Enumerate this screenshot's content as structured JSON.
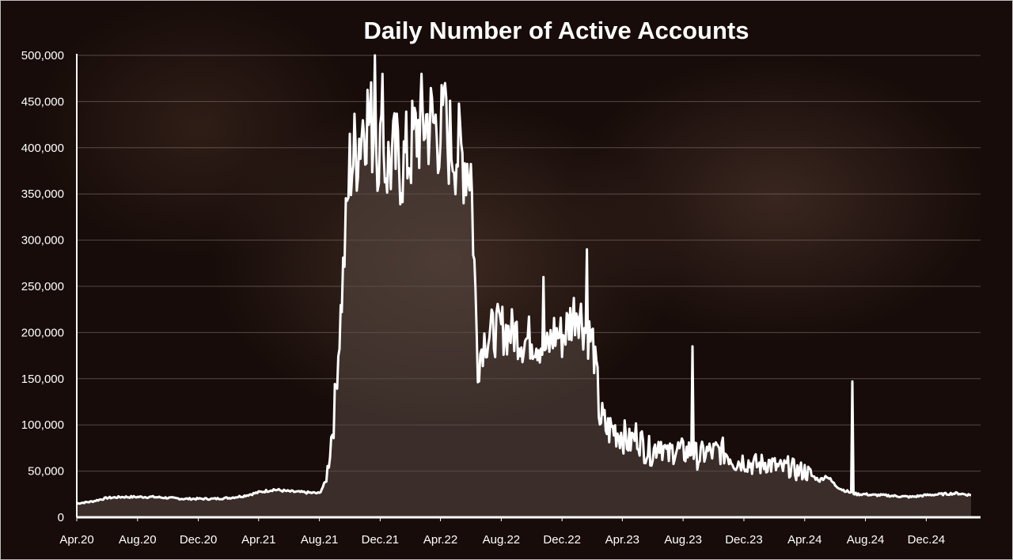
{
  "chart_data": {
    "type": "area",
    "title": "Daily Number of Active Accounts",
    "xlabel": "",
    "ylabel": "",
    "ylim": [
      0,
      500000
    ],
    "grid": true,
    "colors": {
      "line": "#ffffff",
      "fill": "#5a4a46",
      "background": "#170c09"
    },
    "y_ticks": [
      0,
      50000,
      100000,
      150000,
      200000,
      250000,
      300000,
      350000,
      400000,
      450000,
      500000
    ],
    "y_tick_labels": [
      "0",
      "50,000",
      "100,000",
      "150,000",
      "200,000",
      "250,000",
      "300,000",
      "350,000",
      "400,000",
      "450,000",
      "500,000"
    ],
    "x_tick_labels": [
      "Apr.20",
      "Aug.20",
      "Dec.20",
      "Apr.21",
      "Aug.21",
      "Dec.21",
      "Apr.22",
      "Aug.22",
      "Dec.22",
      "Apr.23",
      "Aug.23",
      "Dec.23",
      "Apr.24",
      "Aug.24",
      "Dec.24"
    ],
    "series": [
      {
        "x": [
          "2020-04",
          "2020-05",
          "2020-06",
          "2020-07",
          "2020-08",
          "2020-09",
          "2020-10",
          "2020-11",
          "2020-12",
          "2021-01",
          "2021-02",
          "2021-03",
          "2021-04",
          "2021-05",
          "2021-06",
          "2021-07",
          "2021-08",
          "2021-08-15",
          "2021-09",
          "2021-09-15",
          "2021-10",
          "2021-10-15",
          "2021-11",
          "2021-11-15",
          "2021-12",
          "2021-12-15",
          "2022-01",
          "2022-01-15",
          "2022-02",
          "2022-02-15",
          "2022-03",
          "2022-03-15",
          "2022-04",
          "2022-04-15",
          "2022-05",
          "2022-05-15",
          "2022-06",
          "2022-06-15",
          "2022-06-25",
          "2022-07",
          "2022-07-15",
          "2022-08",
          "2022-08-15",
          "2022-09",
          "2022-09-15",
          "2022-10",
          "2022-10-15",
          "2022-11",
          "2022-11-15",
          "2022-12",
          "2022-12-15",
          "2023-01",
          "2023-01-15",
          "2023-02",
          "2023-02-15",
          "2023-03",
          "2023-03-15",
          "2023-04",
          "2023-04-15",
          "2023-05",
          "2023-05-15",
          "2023-06",
          "2023-06-15",
          "2023-07",
          "2023-07-15",
          "2023-08",
          "2023-08-15",
          "2023-09",
          "2023-09-15",
          "2023-10",
          "2023-10-15",
          "2023-11",
          "2023-11-15",
          "2023-12",
          "2023-12-15",
          "2024-01",
          "2024-01-15",
          "2024-02",
          "2024-02-15",
          "2024-03",
          "2024-03-15",
          "2024-04",
          "2024-04-15",
          "2024-05",
          "2024-05-15",
          "2024-06",
          "2024-06-15",
          "2024-07",
          "2024-07-15",
          "2024-08",
          "2024-08-15",
          "2024-09",
          "2024-10",
          "2024-11",
          "2024-12",
          "2025-01",
          "2025-02",
          "2025-03"
        ],
        "values": [
          15000,
          17000,
          21000,
          22000,
          22000,
          22000,
          21000,
          20000,
          20000,
          20000,
          21000,
          23000,
          27000,
          30000,
          28000,
          27000,
          26000,
          40000,
          120000,
          240000,
          380000,
          400000,
          440000,
          420000,
          400000,
          380000,
          390000,
          380000,
          400000,
          420000,
          430000,
          425000,
          420000,
          410000,
          400000,
          390000,
          380000,
          165000,
          190000,
          195000,
          200000,
          205000,
          200000,
          200000,
          190000,
          195000,
          190000,
          180000,
          200000,
          195000,
          210000,
          230000,
          205000,
          190000,
          110000,
          95000,
          95000,
          90000,
          80000,
          90000,
          75000,
          70000,
          85000,
          65000,
          75000,
          70000,
          72000,
          65000,
          70000,
          70000,
          72000,
          68000,
          60000,
          62000,
          58000,
          56000,
          60000,
          55000,
          52000,
          55000,
          50000,
          50000,
          45000,
          40000,
          45000,
          35000,
          30000,
          27000,
          25000,
          25000,
          24000,
          24000,
          23000,
          22000,
          24000,
          25000,
          26000,
          24000
        ]
      }
    ],
    "annotated_spikes": [
      {
        "x": "2021-11-20",
        "value": 500000
      },
      {
        "x": "2021-12-05",
        "value": 480000
      },
      {
        "x": "2022-04-10",
        "value": 470000
      },
      {
        "x": "2022-10-25",
        "value": 260000
      },
      {
        "x": "2023-01-20",
        "value": 290000
      },
      {
        "x": "2023-08-20",
        "value": 185000
      },
      {
        "x": "2024-07-05",
        "value": 147000
      }
    ]
  }
}
